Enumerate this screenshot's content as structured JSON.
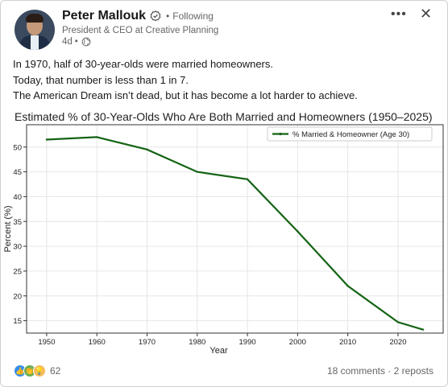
{
  "author": {
    "name": "Peter Mallouk",
    "follow_status": "Following",
    "headline": "President & CEO at Creative Planning",
    "time": "4d"
  },
  "post": {
    "lines": [
      "In 1970, half of 30-year-olds were married homeowners.",
      "Today, that number is less than 1 in 7.",
      "The American Dream isn’t dead, but it has become a lot harder to achieve."
    ]
  },
  "chart_data": {
    "type": "line",
    "title": "Estimated % of 30-Year-Olds Who Are Both Married and Homeowners (1950–2025)",
    "xlabel": "Year",
    "ylabel": "Percent (%)",
    "x": [
      1950,
      1960,
      1970,
      1980,
      1990,
      2000,
      2010,
      2020,
      2025
    ],
    "series": [
      {
        "name": "% Married & Homeowner (Age 30)",
        "values": [
          51.5,
          52.0,
          49.5,
          45.0,
          43.5,
          33.0,
          22.0,
          14.7,
          13.2
        ],
        "color": "#146314"
      }
    ],
    "xticks": [
      1950,
      1960,
      1970,
      1980,
      1990,
      2000,
      2010,
      2020
    ],
    "yticks": [
      15,
      20,
      25,
      30,
      35,
      40,
      45,
      50
    ],
    "xlim": [
      1946,
      2029
    ],
    "ylim": [
      12.5,
      54.5
    ],
    "grid": true,
    "legend_position": "top-right"
  },
  "footer": {
    "reaction_count": "62",
    "engagement": "18 comments · 2 reposts"
  }
}
